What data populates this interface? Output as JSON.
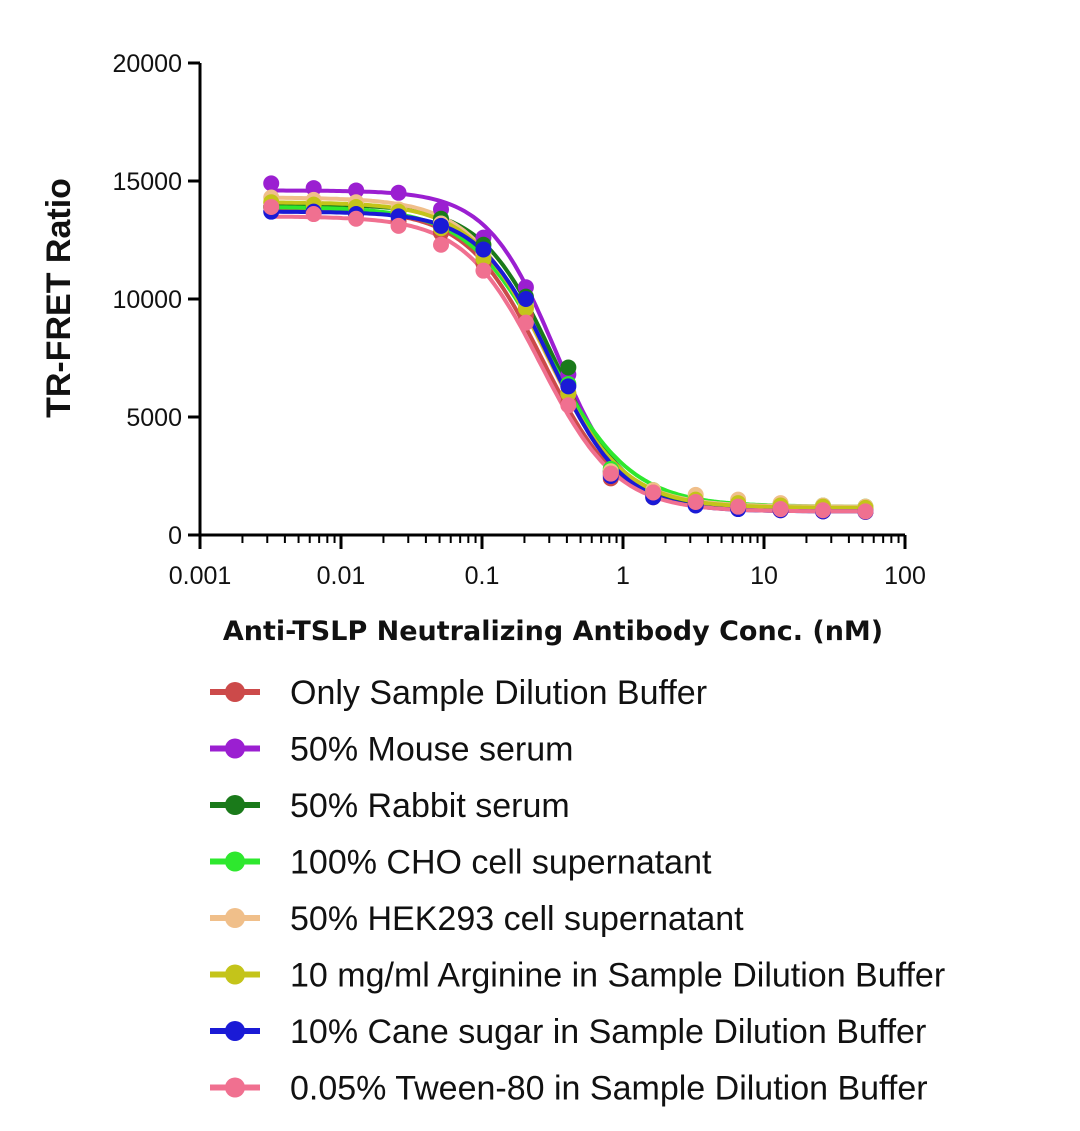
{
  "chart_data": {
    "type": "line",
    "title": "",
    "xlabel": "Anti-TSLP Neutralizing Antibody Conc. (nM)",
    "ylabel": "TR-FRET Ratio",
    "xscale": "log",
    "xlim": [
      0.001,
      100
    ],
    "ylim": [
      0,
      20000
    ],
    "x_ticks": [
      0.001,
      0.01,
      0.1,
      1,
      10,
      100
    ],
    "x_tick_labels": [
      "0.001",
      "0.01",
      "0.1",
      "1",
      "10",
      "100"
    ],
    "y_ticks": [
      0,
      5000,
      10000,
      15000,
      20000
    ],
    "y_tick_labels": [
      "0",
      "5000",
      "10000",
      "15000",
      "20000"
    ],
    "grid": false,
    "legend_position": "bottom",
    "x": [
      0.0032,
      0.0064,
      0.0128,
      0.0256,
      0.0512,
      0.1024,
      0.2048,
      0.4096,
      0.8192,
      1.6384,
      3.2768,
      6.5536,
      13.1072,
      26.2144,
      52.4288
    ],
    "series": [
      {
        "name": "Only Sample Dilution Buffer",
        "color": "#cc4a4a",
        "top": 13800,
        "bottom": 1000,
        "ic50": 0.27,
        "hill": 1.6,
        "values": [
          13900,
          13700,
          13600,
          13300,
          12800,
          11500,
          9300,
          5600,
          2400,
          1600,
          1300,
          1150,
          1050,
          1000,
          980
        ]
      },
      {
        "name": "50% Mouse serum",
        "color": "#9b1fd1",
        "top": 14600,
        "bottom": 1100,
        "ic50": 0.33,
        "hill": 1.8,
        "values": [
          14900,
          14700,
          14600,
          14500,
          13800,
          12600,
          10500,
          6800,
          2700,
          1700,
          1500,
          1350,
          1300,
          1200,
          1150
        ]
      },
      {
        "name": "50% Rabbit serum",
        "color": "#1a7a1a",
        "top": 14000,
        "bottom": 1100,
        "ic50": 0.32,
        "hill": 1.7,
        "values": [
          13900,
          13900,
          13800,
          13700,
          13400,
          12300,
          10100,
          7100,
          2700,
          1800,
          1400,
          1300,
          1250,
          1200,
          1150
        ]
      },
      {
        "name": "100% CHO cell supernatant",
        "color": "#2ee82e",
        "top": 13900,
        "bottom": 1200,
        "ic50": 0.3,
        "hill": 1.5,
        "values": [
          13900,
          13900,
          13800,
          13600,
          13200,
          12000,
          9800,
          6400,
          2800,
          1900,
          1500,
          1350,
          1300,
          1250,
          1200
        ]
      },
      {
        "name": "50% HEK293 cell supernatant",
        "color": "#f0bf8a",
        "top": 14300,
        "bottom": 1200,
        "ic50": 0.28,
        "hill": 1.6,
        "values": [
          14300,
          14200,
          14100,
          13800,
          13200,
          11900,
          9700,
          6000,
          2700,
          1900,
          1700,
          1500,
          1350,
          1250,
          1200
        ]
      },
      {
        "name": "10 mg/ml Arginine in Sample Dilution Buffer",
        "color": "#c4c41a",
        "top": 14100,
        "bottom": 1150,
        "ic50": 0.29,
        "hill": 1.6,
        "values": [
          14100,
          14000,
          13900,
          13700,
          13000,
          11700,
          9600,
          6000,
          2600,
          1800,
          1500,
          1350,
          1250,
          1200,
          1150
        ]
      },
      {
        "name": "10% Cane sugar in Sample Dilution Buffer",
        "color": "#1a1ad6",
        "top": 13700,
        "bottom": 1000,
        "ic50": 0.31,
        "hill": 1.7,
        "values": [
          13700,
          13700,
          13600,
          13500,
          13100,
          12100,
          10000,
          6300,
          2500,
          1600,
          1250,
          1100,
          1050,
          1000,
          980
        ]
      },
      {
        "name": "0.05% Tween-80 in Sample Dilution Buffer",
        "color": "#f07090",
        "top": 13500,
        "bottom": 1000,
        "ic50": 0.26,
        "hill": 1.6,
        "values": [
          13900,
          13600,
          13400,
          13100,
          12300,
          11200,
          9000,
          5500,
          2600,
          1800,
          1400,
          1200,
          1100,
          1050,
          1000
        ]
      }
    ]
  }
}
